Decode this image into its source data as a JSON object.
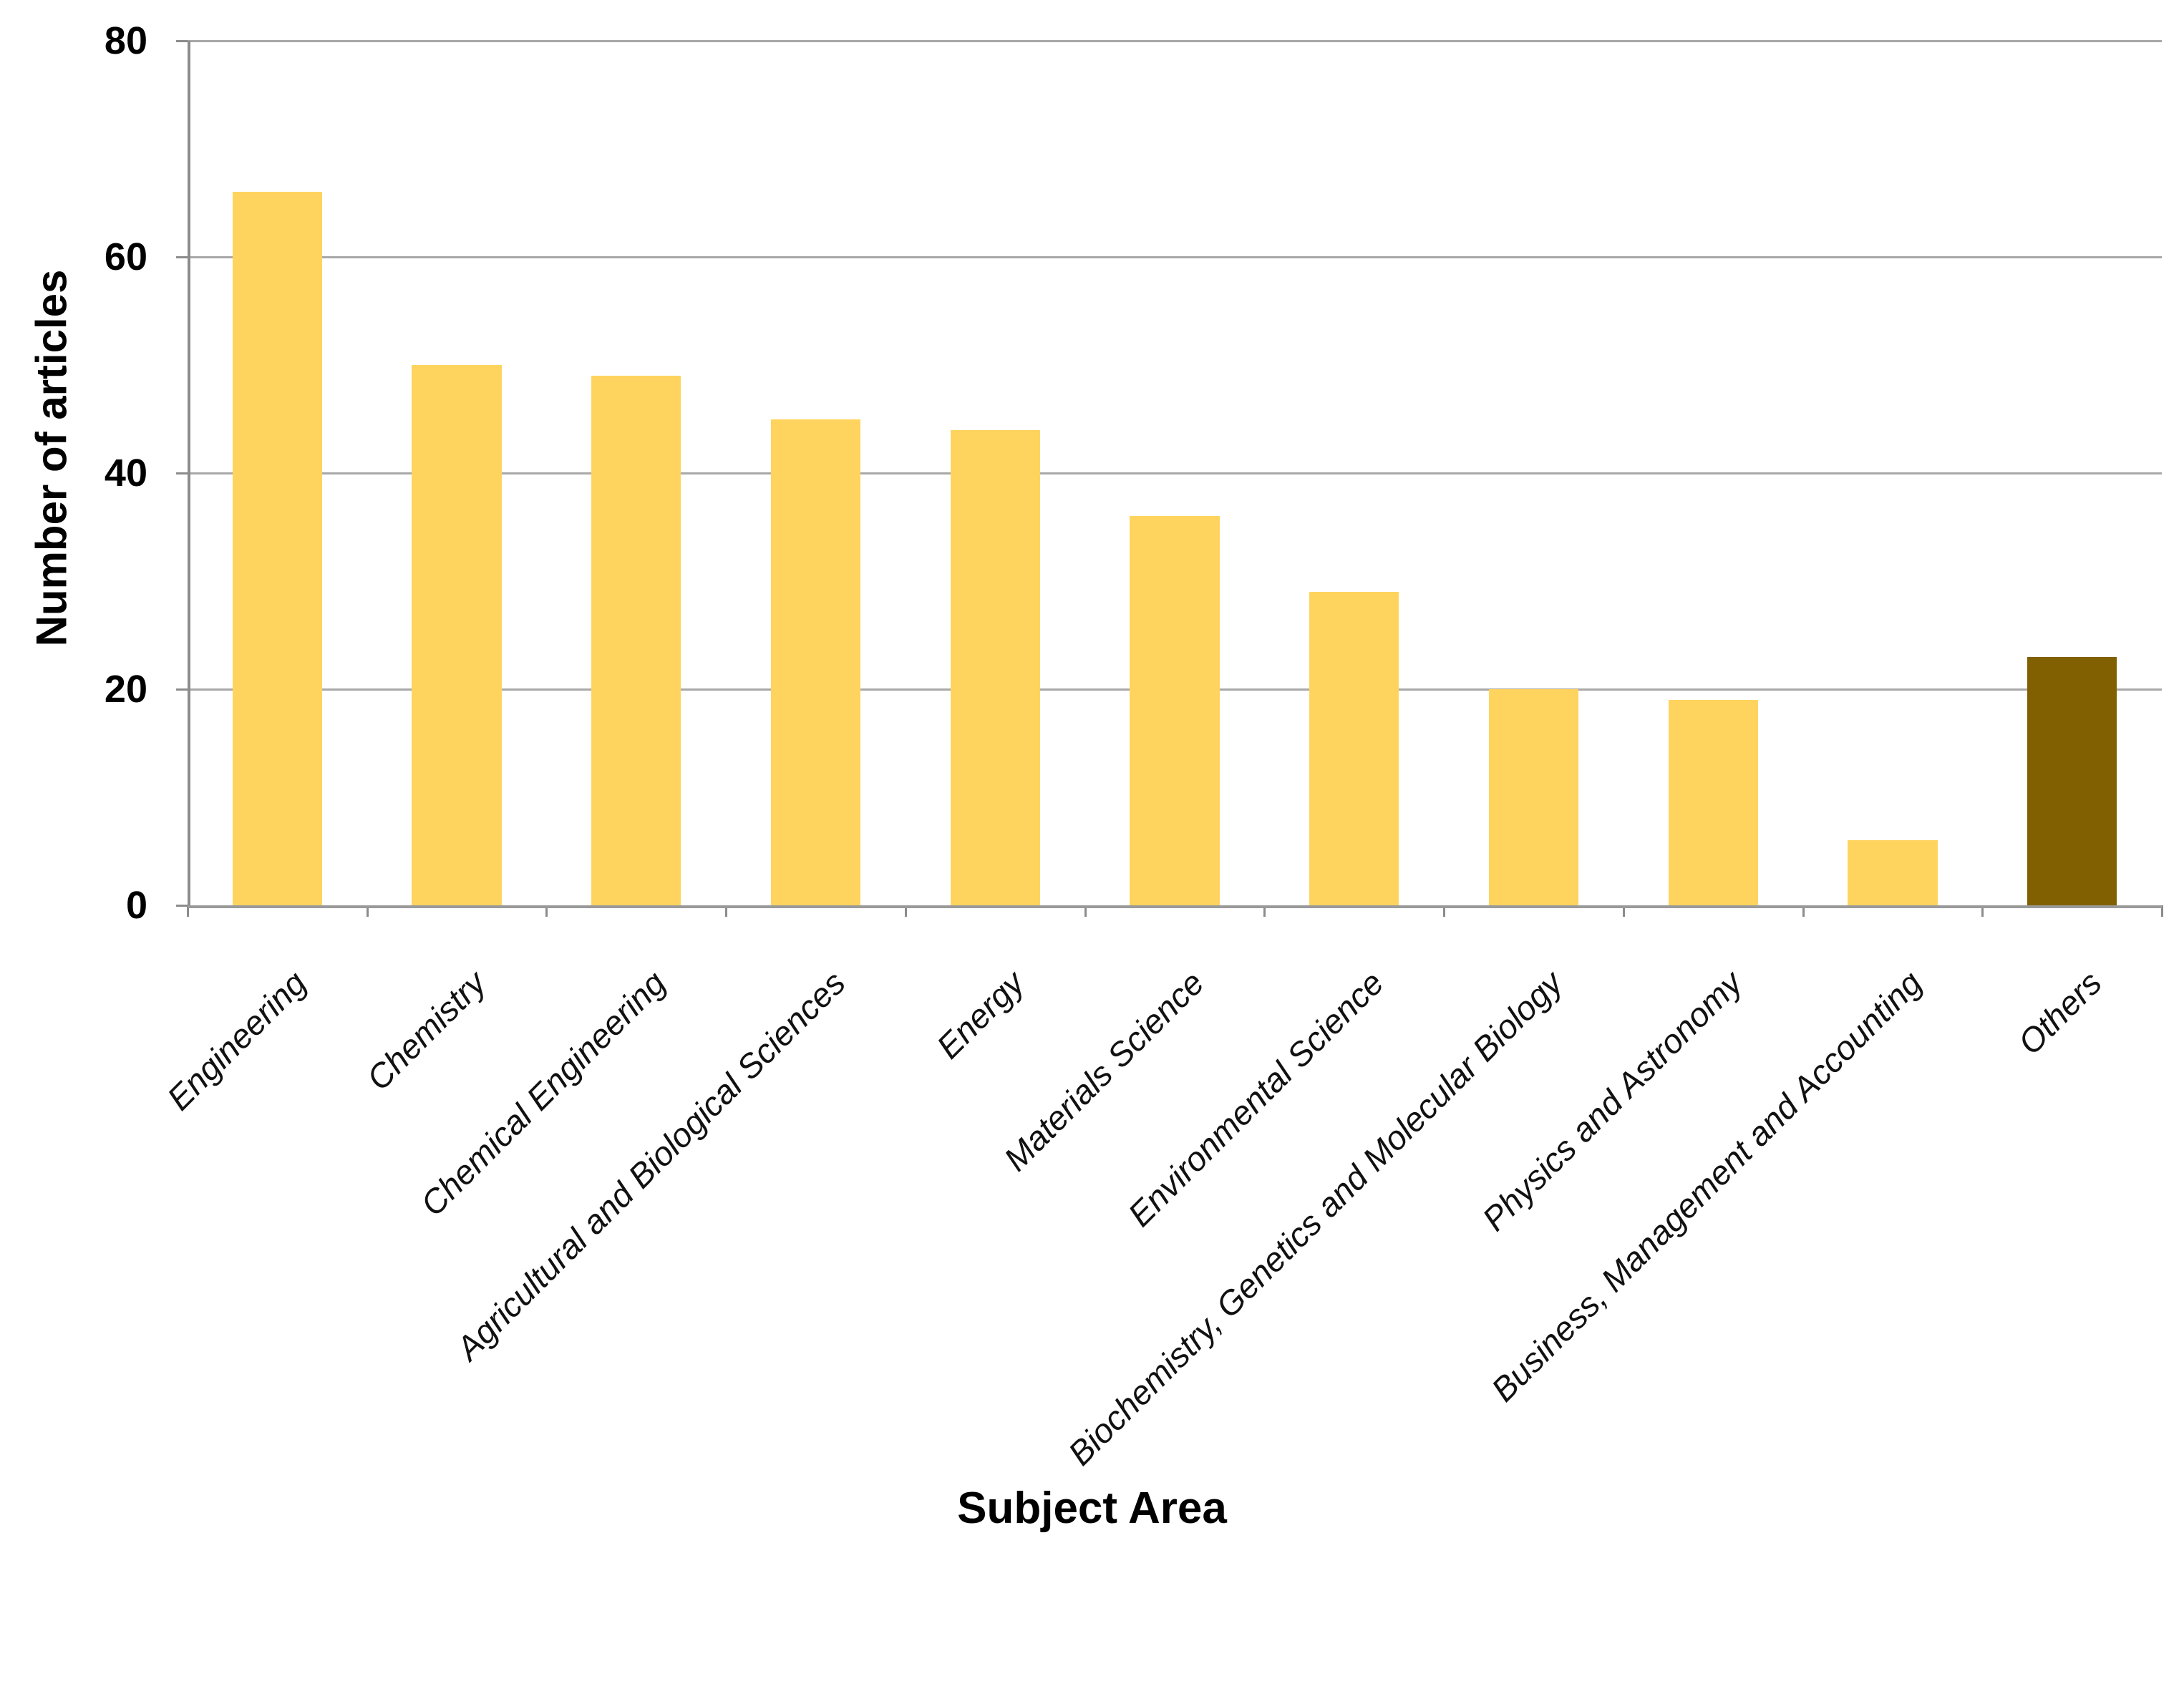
{
  "chart_data": {
    "type": "bar",
    "title": "",
    "xlabel": "Subject Area",
    "ylabel": "Number of articles",
    "categories": [
      "Engineering",
      "Chemistry",
      "Chemical Engineering",
      "Agricultural and Biological Sciences",
      "Energy",
      "Materials Science",
      "Environmental Science",
      "Biochemistry, Genetics and Molecular Biology",
      "Physics and Astronomy",
      "Business, Management and Accounting",
      "Others"
    ],
    "values": [
      66,
      50,
      49,
      45,
      44,
      36,
      29,
      20,
      19,
      6,
      23
    ],
    "ylim": [
      0,
      80
    ],
    "yticks": [
      0,
      20,
      40,
      60,
      80
    ],
    "y_tick_labels": [
      "0",
      "20",
      "40",
      "60",
      "80"
    ],
    "grid": true,
    "legend_position": "none",
    "colors": {
      "bar_default": "#FFD45E",
      "bar_highlight": "#806000",
      "highlight_category": "Others",
      "gridline": "#A8A8A8",
      "axis": "#8C8C8C",
      "text": "#000000"
    }
  }
}
